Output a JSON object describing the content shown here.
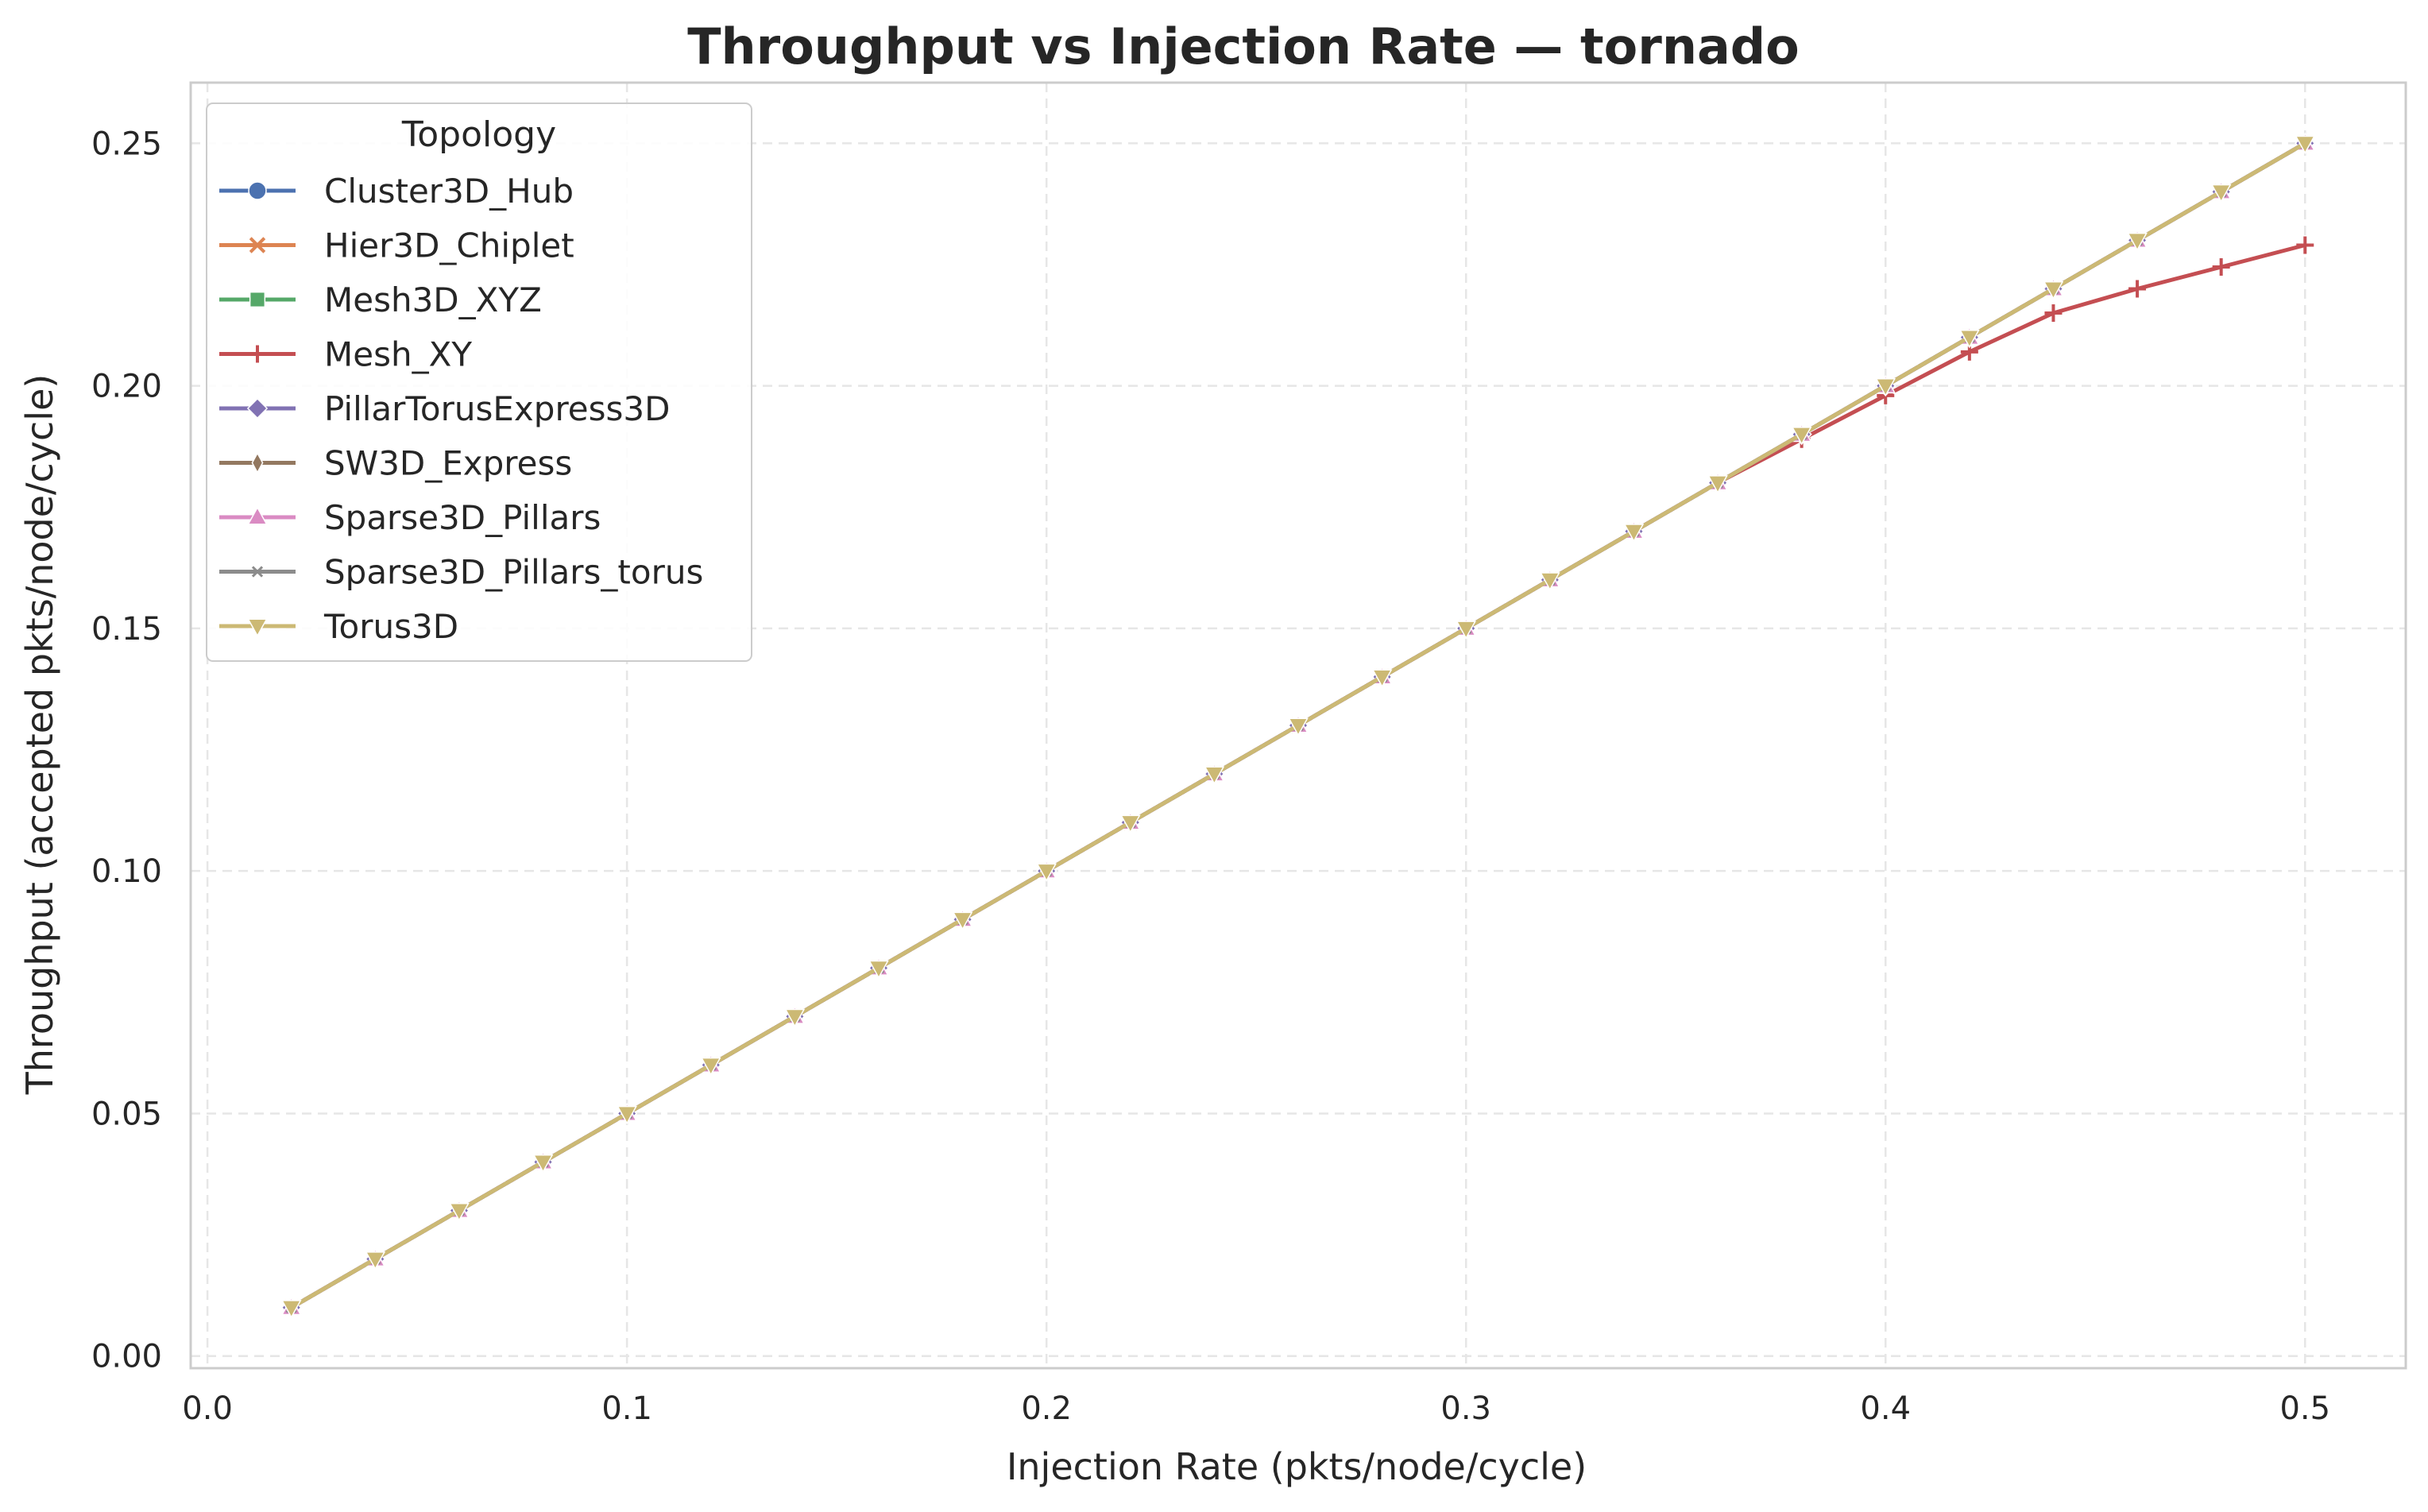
{
  "chart_data": {
    "type": "line",
    "title": "Throughput vs Injection Rate — tornado",
    "xlabel": "Injection Rate (pkts/node/cycle)",
    "ylabel": "Throughput (accepted pkts/node/cycle)",
    "xlim": [
      -0.004,
      0.524
    ],
    "ylim": [
      -0.0025,
      0.2625
    ],
    "x_ticks": [
      0.0,
      0.1,
      0.2,
      0.3,
      0.4,
      0.5
    ],
    "x_tick_labels": [
      "0.0",
      "0.1",
      "0.2",
      "0.3",
      "0.4",
      "0.5"
    ],
    "y_ticks": [
      0.0,
      0.05,
      0.1,
      0.15,
      0.2,
      0.25
    ],
    "y_tick_labels": [
      "0.00",
      "0.05",
      "0.10",
      "0.15",
      "0.20",
      "0.25"
    ],
    "grid": true,
    "legend": {
      "title": "Topology",
      "placement": "upper-left"
    },
    "x": [
      0.02,
      0.04,
      0.06,
      0.08,
      0.1,
      0.12,
      0.14,
      0.16,
      0.18,
      0.2,
      0.22,
      0.24,
      0.26,
      0.28,
      0.3,
      0.32,
      0.34,
      0.36,
      0.38,
      0.4,
      0.42,
      0.44,
      0.46,
      0.48,
      0.5
    ],
    "series": [
      {
        "name": "Cluster3D_Hub",
        "color": "#4c72b0",
        "marker": "circle",
        "values": [
          0.01,
          0.02,
          0.03,
          0.04,
          0.05,
          0.06,
          0.07,
          0.08,
          0.09,
          0.1,
          0.11,
          0.12,
          0.13,
          0.14,
          0.15,
          0.16,
          0.17,
          0.18,
          0.19,
          0.2,
          0.21,
          0.22,
          0.23,
          0.24,
          0.25
        ]
      },
      {
        "name": "Hier3D_Chiplet",
        "color": "#dd8452",
        "marker": "x",
        "values": [
          0.01,
          0.02,
          0.03,
          0.04,
          0.05,
          0.06,
          0.07,
          0.08,
          0.09,
          0.1,
          0.11,
          0.12,
          0.13,
          0.14,
          0.15,
          0.16,
          0.17,
          0.18,
          0.19,
          0.2,
          0.21,
          0.22,
          0.23,
          0.24,
          0.25
        ]
      },
      {
        "name": "Mesh3D_XYZ",
        "color": "#55a868",
        "marker": "square",
        "values": [
          0.01,
          0.02,
          0.03,
          0.04,
          0.05,
          0.06,
          0.07,
          0.08,
          0.09,
          0.1,
          0.11,
          0.12,
          0.13,
          0.14,
          0.15,
          0.16,
          0.17,
          0.18,
          0.19,
          0.2,
          0.21,
          0.22,
          0.23,
          0.24,
          0.25
        ]
      },
      {
        "name": "Mesh_XY",
        "color": "#c44e52",
        "marker": "plus",
        "values": [
          0.01,
          0.02,
          0.03,
          0.04,
          0.05,
          0.06,
          0.07,
          0.08,
          0.09,
          0.1,
          0.11,
          0.12,
          0.13,
          0.14,
          0.15,
          0.16,
          0.17,
          0.18,
          0.189,
          0.198,
          0.207,
          0.215,
          0.22,
          0.2245,
          0.229
        ]
      },
      {
        "name": "PillarTorusExpress3D",
        "color": "#8172b3",
        "marker": "diamond",
        "values": [
          0.01,
          0.02,
          0.03,
          0.04,
          0.05,
          0.06,
          0.07,
          0.08,
          0.09,
          0.1,
          0.11,
          0.12,
          0.13,
          0.14,
          0.15,
          0.16,
          0.17,
          0.18,
          0.19,
          0.2,
          0.21,
          0.22,
          0.23,
          0.24,
          0.25
        ]
      },
      {
        "name": "SW3D_Express",
        "color": "#937860",
        "marker": "thin-diamond",
        "values": [
          0.01,
          0.02,
          0.03,
          0.04,
          0.05,
          0.06,
          0.07,
          0.08,
          0.09,
          0.1,
          0.11,
          0.12,
          0.13,
          0.14,
          0.15,
          0.16,
          0.17,
          0.18,
          0.19,
          0.2,
          0.21,
          0.22,
          0.23,
          0.24,
          0.25
        ]
      },
      {
        "name": "Sparse3D_Pillars",
        "color": "#da8bc3",
        "marker": "triangle-up",
        "values": [
          0.01,
          0.02,
          0.03,
          0.04,
          0.05,
          0.06,
          0.07,
          0.08,
          0.09,
          0.1,
          0.11,
          0.12,
          0.13,
          0.14,
          0.15,
          0.16,
          0.17,
          0.18,
          0.19,
          0.2,
          0.21,
          0.22,
          0.23,
          0.24,
          0.25
        ]
      },
      {
        "name": "Sparse3D_Pillars_torus",
        "color": "#8c8c8c",
        "marker": "small-x",
        "values": [
          0.01,
          0.02,
          0.03,
          0.04,
          0.05,
          0.06,
          0.07,
          0.08,
          0.09,
          0.1,
          0.11,
          0.12,
          0.13,
          0.14,
          0.15,
          0.16,
          0.17,
          0.18,
          0.19,
          0.2,
          0.21,
          0.22,
          0.23,
          0.24,
          0.25
        ]
      },
      {
        "name": "Torus3D",
        "color": "#ccb974",
        "marker": "triangle-down",
        "values": [
          0.01,
          0.02,
          0.03,
          0.04,
          0.05,
          0.06,
          0.07,
          0.08,
          0.09,
          0.1,
          0.11,
          0.12,
          0.13,
          0.14,
          0.15,
          0.16,
          0.17,
          0.18,
          0.19,
          0.2,
          0.21,
          0.22,
          0.23,
          0.24,
          0.25
        ]
      }
    ]
  }
}
